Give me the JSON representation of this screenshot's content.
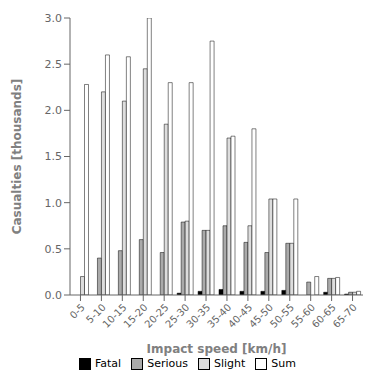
{
  "chart_data": {
    "type": "bar",
    "categories": [
      "0-5",
      "5-10",
      "10-15",
      "15-20",
      "20-25",
      "25-30",
      "30-35",
      "35-40",
      "40-45",
      "45-50",
      "50-55",
      "55-60",
      "60-65",
      "65-70"
    ],
    "series": [
      {
        "name": "Fatal",
        "color": "#000000",
        "values": [
          0.0,
          0.0,
          0.0,
          0.0,
          0.0,
          0.02,
          0.04,
          0.06,
          0.04,
          0.04,
          0.05,
          0.0,
          0.03,
          0.01
        ]
      },
      {
        "name": "Serious",
        "color": "#aaaaaa",
        "values": [
          0.0,
          0.4,
          0.48,
          0.6,
          0.46,
          0.79,
          0.7,
          0.75,
          0.57,
          0.46,
          0.56,
          0.14,
          0.18,
          0.03
        ]
      },
      {
        "name": "Slight",
        "color": "#dddddd",
        "values": [
          0.2,
          2.2,
          2.1,
          2.45,
          1.85,
          0.8,
          0.7,
          1.7,
          0.75,
          1.04,
          0.56,
          0.0,
          0.18,
          0.03
        ]
      },
      {
        "name": "Sum",
        "color": "#ffffff",
        "values": [
          2.28,
          2.6,
          2.58,
          3.0,
          2.3,
          2.3,
          2.75,
          1.72,
          1.8,
          1.04,
          1.04,
          0.2,
          0.19,
          0.04
        ]
      }
    ],
    "xlabel": "Impact speed [km/h]",
    "ylabel": "Casualties [thousands]",
    "ylim": [
      0.0,
      3.0
    ],
    "yticks": [
      {
        "value": 0.0,
        "label": "0.0"
      },
      0.5,
      {
        "value": 1.0,
        "label": "1.0"
      },
      1.5,
      {
        "value": 2.0,
        "label": "2.0"
      },
      2.5,
      {
        "value": 3.0,
        "label": "3.0"
      }
    ],
    "grid": false,
    "legend": "bottom"
  }
}
